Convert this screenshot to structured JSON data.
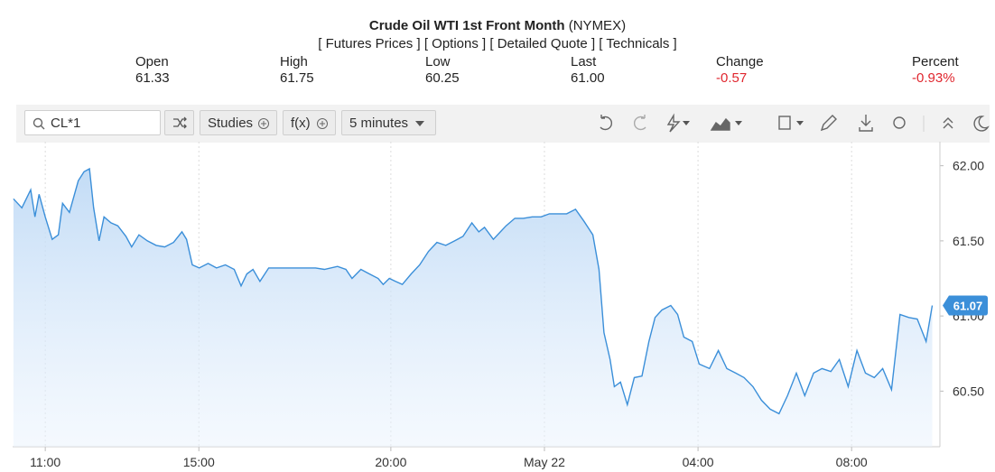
{
  "header": {
    "title": "Crude Oil WTI 1st Front Month",
    "exchange": "(NYMEX)",
    "links": [
      "[ Futures Prices ]",
      "[ Options ]",
      "[ Detailed Quote ]",
      "[ Technicals ]"
    ]
  },
  "quote": [
    {
      "label": "Open",
      "value": "61.33"
    },
    {
      "label": "High",
      "value": "61.75"
    },
    {
      "label": "Low",
      "value": "60.25"
    },
    {
      "label": "Last",
      "value": "61.00"
    },
    {
      "label": "Change",
      "value": "-0.57",
      "color": "#e0262e"
    },
    {
      "label": "Percent",
      "value": "-0.93%",
      "color": "#e0262e"
    }
  ],
  "toolbar": {
    "symbol": "CL*1",
    "buttons": [
      "Studies",
      "f(x)"
    ],
    "interval": "5 minutes"
  },
  "chart_data": {
    "type": "line",
    "color": "#3b8fd9",
    "grid": true,
    "current": 61.07,
    "x": [
      10.17,
      10.39,
      10.62,
      10.73,
      10.84,
      11.0,
      11.18,
      11.34,
      11.45,
      11.63,
      11.86,
      12.01,
      12.15,
      12.26,
      12.4,
      12.53,
      12.71,
      12.89,
      13.1,
      13.25,
      13.44,
      13.66,
      13.89,
      14.11,
      14.34,
      14.56,
      14.68,
      14.83,
      15.01,
      15.24,
      15.46,
      15.69,
      15.92,
      16.1,
      16.25,
      16.41,
      16.59,
      16.82,
      18.04,
      18.27,
      18.61,
      18.83,
      18.99,
      19.22,
      19.44,
      19.67,
      19.8,
      19.96,
      20.12,
      20.3,
      20.53,
      20.75,
      20.98,
      21.2,
      21.43,
      21.66,
      21.88,
      22.11,
      22.29,
      22.44,
      22.67,
      23.0,
      23.23,
      23.45,
      23.68,
      23.91,
      24.13,
      24.36,
      24.58,
      24.81,
      25.03,
      25.26,
      25.42,
      25.55,
      25.71,
      25.82,
      25.98,
      26.16,
      26.34,
      26.54,
      26.72,
      26.88,
      27.06,
      27.29,
      27.47,
      27.63,
      27.85,
      28.03,
      28.3,
      28.53,
      28.75,
      28.98,
      29.2,
      29.43,
      29.65,
      29.88,
      30.11,
      30.33,
      30.56,
      30.78,
      31.01,
      31.23,
      31.46,
      31.68,
      31.91,
      32.14,
      32.36,
      32.59,
      32.81,
      33.04,
      33.26,
      33.49,
      33.71,
      33.94,
      34.1
    ],
    "values": [
      61.78,
      61.72,
      61.84,
      61.66,
      61.81,
      61.66,
      61.51,
      61.54,
      61.75,
      61.69,
      61.9,
      61.96,
      61.98,
      61.72,
      61.5,
      61.66,
      61.62,
      61.6,
      61.53,
      61.46,
      61.54,
      61.5,
      61.47,
      61.46,
      61.49,
      61.56,
      61.51,
      61.34,
      61.32,
      61.35,
      61.32,
      61.34,
      61.31,
      61.2,
      61.28,
      61.31,
      61.23,
      61.32,
      61.32,
      61.31,
      61.33,
      61.31,
      61.25,
      61.31,
      61.28,
      61.25,
      61.21,
      61.25,
      61.23,
      61.21,
      61.28,
      61.34,
      61.43,
      61.49,
      61.47,
      61.5,
      61.53,
      61.62,
      61.56,
      61.59,
      61.51,
      61.6,
      61.65,
      61.65,
      61.66,
      61.66,
      61.68,
      61.68,
      61.68,
      61.71,
      61.63,
      61.54,
      61.31,
      60.89,
      60.71,
      60.53,
      60.56,
      60.41,
      60.59,
      60.6,
      60.83,
      60.99,
      61.04,
      61.07,
      61.01,
      60.86,
      60.83,
      60.68,
      60.65,
      60.77,
      60.65,
      60.62,
      60.59,
      60.53,
      60.44,
      60.38,
      60.35,
      60.47,
      60.62,
      60.47,
      60.62,
      60.65,
      60.63,
      60.71,
      60.53,
      60.77,
      60.62,
      60.59,
      60.65,
      60.51,
      61.01,
      60.99,
      60.98,
      60.83,
      61.07
    ],
    "xlim": [
      10.15,
      34.3
    ],
    "xticks": [
      {
        "value": 11,
        "label": "11:00"
      },
      {
        "value": 15,
        "label": "15:00"
      },
      {
        "value": 20,
        "label": "20:00"
      },
      {
        "value": 24,
        "label": "May 22"
      },
      {
        "value": 28,
        "label": "04:00"
      },
      {
        "value": 32,
        "label": "08:00"
      }
    ],
    "ylim": [
      60.13,
      62.16
    ],
    "yticks": [
      {
        "value": 60.5,
        "label": "60.50"
      },
      {
        "value": 61,
        "label": "61.00"
      },
      {
        "value": 61.5,
        "label": "61.50"
      },
      {
        "value": 62,
        "label": "62.00"
      }
    ]
  }
}
